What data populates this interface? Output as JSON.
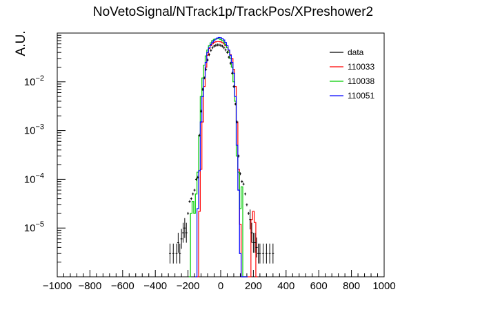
{
  "chart_data": {
    "type": "line",
    "title": "NoVetoSignal/NTrack1p/TrackPos/XPreshower2",
    "xlabel": "",
    "ylabel": "A.U.",
    "xlim": [
      -1000,
      1000
    ],
    "ylim": [
      1e-06,
      0.1
    ],
    "log_y": true,
    "grid": false,
    "legend_position": "top-right",
    "x_ticks": [
      -1000,
      -800,
      -600,
      -400,
      -200,
      0,
      200,
      400,
      600,
      800,
      1000
    ],
    "x_tick_labels": [
      "−1000",
      "−800",
      "−600",
      "−400",
      "−200",
      "0",
      "200",
      "400",
      "600",
      "800",
      "1000"
    ],
    "y_tick_labels": [
      {
        "value": 1e-05,
        "base": "10",
        "exp": "−5"
      },
      {
        "value": 0.0001,
        "base": "10",
        "exp": "−4"
      },
      {
        "value": 0.001,
        "base": "10",
        "exp": "−3"
      },
      {
        "value": 0.01,
        "base": "10",
        "exp": "−2"
      }
    ],
    "bin_width": 10,
    "series": [
      {
        "name": "data",
        "color": "#000000",
        "style": "markers",
        "x": [
          -310,
          -290,
          -270,
          -260,
          -250,
          -240,
          -230,
          -220,
          -210,
          -200,
          -190,
          -180,
          -170,
          -160,
          -150,
          -140,
          -130,
          -120,
          -110,
          -100,
          -90,
          -80,
          -70,
          -60,
          -50,
          -40,
          -30,
          -20,
          -10,
          0,
          10,
          20,
          30,
          40,
          50,
          60,
          70,
          80,
          90,
          100,
          110,
          120,
          130,
          140,
          150,
          160,
          170,
          180,
          190,
          200,
          210,
          220,
          230,
          240,
          260,
          280,
          300,
          320
        ],
        "y": [
          3e-06,
          3e-06,
          3e-06,
          5e-06,
          3e-06,
          6e-06,
          8e-06,
          1e-05,
          8e-06,
          2e-05,
          3.5e-05,
          4e-05,
          5e-05,
          6e-05,
          0.0001,
          0.00011,
          0.0008,
          0.0025,
          0.007,
          0.012,
          0.018,
          0.028,
          0.036,
          0.044,
          0.05,
          0.054,
          0.056,
          0.057,
          0.057,
          0.056,
          0.054,
          0.05,
          0.045,
          0.04,
          0.032,
          0.024,
          0.015,
          0.008,
          0.0035,
          0.0015,
          0.0003,
          0.00013,
          9e-05,
          8e-05,
          5e-05,
          3e-05,
          2e-05,
          1.5e-05,
          8e-06,
          5e-06,
          5e-06,
          4e-06,
          3e-06,
          3e-06,
          3e-06,
          3e-06,
          3e-06,
          3e-06
        ]
      },
      {
        "name": "110033",
        "color": "#ff0000",
        "style": "step",
        "x": [
          -140,
          -130,
          -120,
          -110,
          -100,
          -90,
          -80,
          -70,
          -60,
          -50,
          -40,
          -30,
          -20,
          -10,
          0,
          10,
          20,
          30,
          40,
          50,
          60,
          70,
          80,
          90,
          100,
          110,
          120,
          130,
          140,
          150,
          160,
          170,
          180,
          190,
          200,
          210,
          220
        ],
        "y": [
          1e-06,
          2.2e-05,
          0.00016,
          0.0015,
          0.008,
          0.02,
          0.035,
          0.048,
          0.055,
          0.06,
          0.064,
          0.066,
          0.067,
          0.067,
          0.066,
          0.064,
          0.06,
          0.055,
          0.05,
          0.043,
          0.036,
          0.03,
          0.018,
          0.008,
          0.0015,
          0.00016,
          1.2e-05,
          1e-06,
          1e-06,
          1e-06,
          1e-06,
          1e-06,
          1e-06,
          1.5e-05,
          2.2e-05,
          1.3e-05,
          1e-06
        ]
      },
      {
        "name": "110038",
        "color": "#00cc00",
        "style": "step",
        "x": [
          -190,
          -180,
          -170,
          -160,
          -150,
          -140,
          -130,
          -120,
          -110,
          -100,
          -90,
          -80,
          -70,
          -60,
          -50,
          -40,
          -30,
          -20,
          -10,
          0,
          10,
          20,
          30,
          40,
          50,
          60,
          70,
          80,
          90,
          100,
          110,
          120,
          130,
          140,
          150,
          160
        ],
        "y": [
          1e-06,
          2e-05,
          3.5e-05,
          2e-05,
          5e-05,
          0.00014,
          0.0008,
          0.005,
          0.012,
          0.022,
          0.034,
          0.045,
          0.055,
          0.063,
          0.07,
          0.074,
          0.076,
          0.077,
          0.076,
          0.074,
          0.07,
          0.065,
          0.058,
          0.05,
          0.04,
          0.03,
          0.02,
          0.01,
          0.004,
          0.0003,
          0.00014,
          2.5e-05,
          7e-05,
          1e-06,
          1e-06,
          1e-06
        ]
      },
      {
        "name": "110051",
        "color": "#0000ff",
        "style": "step",
        "x": [
          -150,
          -140,
          -130,
          -120,
          -110,
          -100,
          -90,
          -80,
          -70,
          -60,
          -50,
          -40,
          -30,
          -20,
          -10,
          0,
          10,
          20,
          30,
          40,
          50,
          60,
          70,
          80,
          90,
          100,
          110,
          120,
          130,
          140,
          150,
          160
        ],
        "y": [
          1e-06,
          2.5e-05,
          0.00015,
          0.0015,
          0.005,
          0.012,
          0.025,
          0.04,
          0.05,
          0.058,
          0.065,
          0.07,
          0.075,
          0.079,
          0.081,
          0.08,
          0.077,
          0.072,
          0.064,
          0.055,
          0.045,
          0.035,
          0.025,
          0.015,
          0.005,
          0.0005,
          6e-05,
          3e-06,
          1e-06,
          1e-06,
          1e-06,
          1e-06
        ]
      }
    ]
  }
}
